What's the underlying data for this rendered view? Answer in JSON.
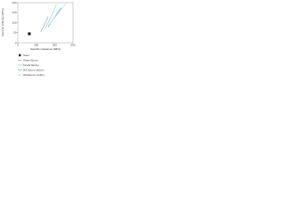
{
  "chart_data": {
    "type": "line",
    "y_label": "Specific stiffness (MPa)",
    "x_label": "Specific resistance (MPa)",
    "xlim": [
      0,
      600
    ],
    "xticks": [
      0,
      200,
      400,
      600
    ],
    "ylim": [
      0,
      200
    ],
    "yticks": [
      0,
      50,
      100,
      150,
      200
    ],
    "grid": false,
    "legend": "bottom-left",
    "series": [
      {
        "name": "Steel",
        "color": "#000000",
        "marker": "square",
        "x": [
          125
        ],
        "values": [
          45
        ]
      },
      {
        "name": "Glass Epoxy",
        "color": "#9aa6b2",
        "x": [
          250,
          330
        ],
        "values": [
          55,
          130
        ]
      },
      {
        "name": "Kevlar Epoxy",
        "color": "#8fd3f0",
        "x": [
          300,
          420
        ],
        "values": [
          70,
          190
        ]
      },
      {
        "name": "HS Epoxy carbon",
        "color": "#5bb8e6",
        "x": [
          330,
          470
        ],
        "values": [
          80,
          175
        ]
      },
      {
        "name": "HM Epoxy carbon",
        "color": "#c9d8e6",
        "x": [
          340,
          520
        ],
        "values": [
          90,
          195
        ]
      }
    ]
  }
}
